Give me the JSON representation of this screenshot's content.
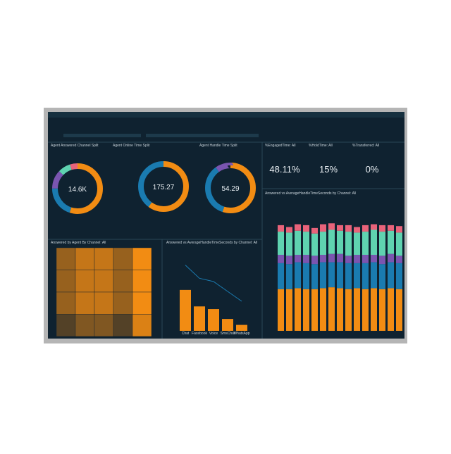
{
  "donuts": [
    {
      "title": "Agent Answered Channel Split",
      "center": "14.6K",
      "segments": [
        {
          "color": "#f28c13",
          "value": 55
        },
        {
          "color": "#1a7bb0",
          "value": 20
        },
        {
          "color": "#7a55b0",
          "value": 12
        },
        {
          "color": "#5fd3b0",
          "value": 8
        },
        {
          "color": "#e8637a",
          "value": 5
        }
      ]
    },
    {
      "title": "Agent Online Time Split",
      "center": "175.27",
      "segments": [
        {
          "color": "#f28c13",
          "value": 60
        },
        {
          "color": "#1a7bb0",
          "value": 40
        }
      ]
    },
    {
      "title": "Agent Handle Time Split",
      "center": "54.29",
      "segments": [
        {
          "color": "#f28c13",
          "value": 55
        },
        {
          "color": "#1a7bb0",
          "value": 35
        },
        {
          "color": "#7a55b0",
          "value": 10
        }
      ]
    }
  ],
  "kpis": [
    {
      "label": "%EngagedTime: All",
      "value": "48.11%"
    },
    {
      "label": "%HoldTime: All",
      "value": "15%"
    },
    {
      "label": "%Transferred: All",
      "value": "0%"
    }
  ],
  "heatmap": {
    "title": "Answered by Agent By Channel: All",
    "cells": [
      [
        0.6,
        0.8,
        0.8,
        0.6,
        1
      ],
      [
        0.6,
        0.8,
        0.8,
        0.6,
        1
      ],
      [
        0.6,
        0.8,
        0.8,
        0.6,
        1
      ],
      [
        0.3,
        0.5,
        0.5,
        0.3,
        0.9
      ]
    ]
  },
  "channel_bar": {
    "title": "Answered vs AverageHandleTimeSeconds by Channel: All",
    "categories": [
      "Chat",
      "Facebook",
      "Voice",
      "SmsChat",
      "WhatsApp"
    ],
    "values": [
      62,
      37,
      33,
      18,
      9
    ],
    "ylim": [
      0,
      80
    ],
    "line": [
      100,
      80,
      75,
      60,
      45
    ],
    "y2lim": [
      0,
      120
    ]
  },
  "stacked": {
    "title": "Answered vs AverageHandleTimeSeconds by Channel: All",
    "ylim": [
      0,
      120
    ],
    "series": [
      {
        "color": "#f28c13",
        "values": [
          45,
          45,
          46,
          45,
          45,
          46,
          47,
          46,
          45,
          46,
          45,
          46,
          45,
          46,
          45
        ]
      },
      {
        "color": "#1a7bb0",
        "values": [
          28,
          27,
          28,
          28,
          27,
          28,
          27,
          28,
          28,
          27,
          28,
          28,
          27,
          28,
          28
        ]
      },
      {
        "color": "#7a55b0",
        "values": [
          9,
          9,
          8,
          9,
          9,
          8,
          9,
          9,
          8,
          9,
          9,
          8,
          9,
          9,
          8
        ]
      },
      {
        "color": "#5fd3b0",
        "values": [
          25,
          25,
          26,
          25,
          24,
          25,
          26,
          25,
          26,
          24,
          25,
          27,
          26,
          25,
          25
        ]
      },
      {
        "color": "#e8637a",
        "values": [
          7,
          6,
          7,
          7,
          6,
          8,
          7,
          6,
          7,
          6,
          7,
          6,
          7,
          6,
          7
        ]
      }
    ]
  }
}
